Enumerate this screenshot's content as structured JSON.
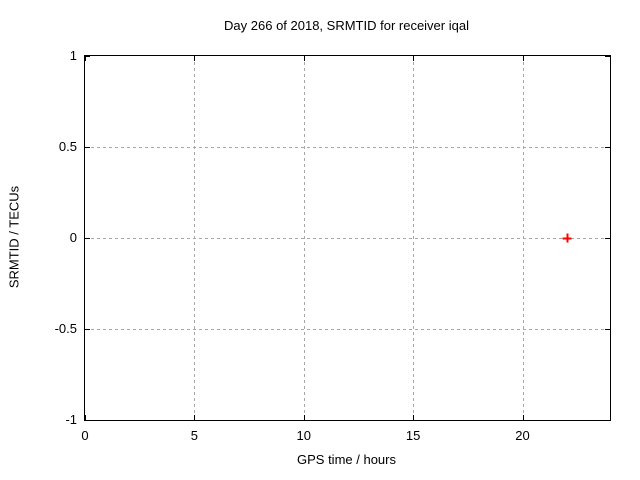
{
  "chart_data": {
    "type": "scatter",
    "title": "Day 266 of 2018, SRMTID for receiver iqal",
    "xlabel": "GPS time / hours",
    "ylabel": "SRMTID / TECUs",
    "xlim": [
      0,
      24
    ],
    "ylim": [
      -1,
      1
    ],
    "xticks": [
      {
        "v": 0,
        "label": "0"
      },
      {
        "v": 5,
        "label": "5"
      },
      {
        "v": 10,
        "label": "10"
      },
      {
        "v": 15,
        "label": "15"
      },
      {
        "v": 20,
        "label": "20"
      }
    ],
    "yticks": [
      {
        "v": -1,
        "label": "-1"
      },
      {
        "v": -0.5,
        "label": "-0.5"
      },
      {
        "v": 0,
        "label": "0"
      },
      {
        "v": 0.5,
        "label": "0.5"
      },
      {
        "v": 1,
        "label": "1"
      }
    ],
    "grid": true,
    "legend": "none",
    "background_color": "#ffffff",
    "border_color": "#000000",
    "grid_color": "#a8a8a8",
    "series": [
      {
        "marker": "plus",
        "color": "#ff0000",
        "points": [
          [
            22.05,
            0
          ]
        ]
      }
    ]
  }
}
